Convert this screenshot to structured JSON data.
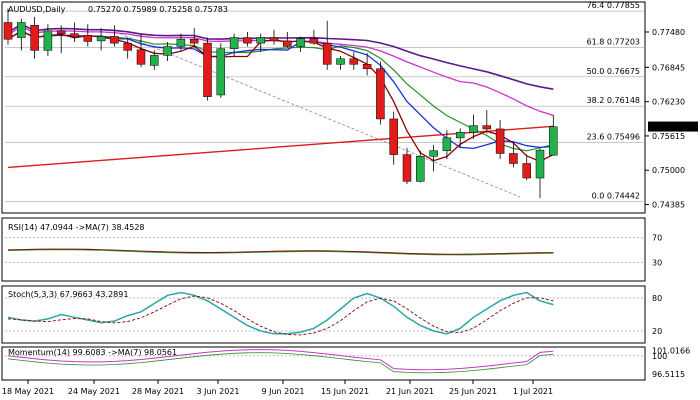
{
  "header": {
    "symbol": "AUDUSD,Daily",
    "ohlc": "0.75270 0.75989 0.75258 0.75783"
  },
  "price_axis": {
    "ticks": [
      "0.77480",
      "0.76845",
      "0.76230",
      "0.75615",
      "0.75000",
      "0.74385"
    ],
    "current_price": "0.75783"
  },
  "fibonacci": [
    {
      "label": "76.4 0.77855"
    },
    {
      "label": "61.8 0.77203"
    },
    {
      "label": "50.0 0.76675"
    },
    {
      "label": "38.2 0.76148"
    },
    {
      "label": "23.6 0.75496"
    },
    {
      "label": "0.0 0.74442"
    }
  ],
  "rsi": {
    "label": "RSI(14) 47.0944 ->MA(7) 38.4528",
    "ticks": [
      "70",
      "30"
    ]
  },
  "stoch": {
    "label": "Stoch(5,3,3) 67.9663 43.2891",
    "ticks": [
      "80",
      "20"
    ]
  },
  "momentum": {
    "label": "Momentum(14) 99.6083 ->MA(7) 98.0561",
    "ticks": [
      "101.0166",
      "100",
      "96.5115"
    ]
  },
  "dates": [
    "18 May 2021",
    "24 May 2021",
    "28 May 2021",
    "3 Jun 2021",
    "9 Jun 2021",
    "15 Jun 2021",
    "21 Jun 2021",
    "25 Jun 2021",
    "1 Jul 2021"
  ],
  "colors": {
    "bull": "#22b14c",
    "bear": "#e01b1b",
    "ma_red": "#8b0000",
    "ma_blue": "#1b2fd6",
    "ma_green": "#2a8f2a",
    "ma_magenta": "#cc33cc",
    "ma_purple": "#5a1a8a",
    "ma_long": "#e01b1b",
    "osc_teal": "#2aa6a6"
  },
  "chart_data": {
    "type": "candlestick",
    "title": "AUDUSD,Daily",
    "candles": [
      {
        "o": 0.7765,
        "h": 0.779,
        "l": 0.7725,
        "c": 0.7735
      },
      {
        "o": 0.7738,
        "h": 0.7772,
        "l": 0.7715,
        "c": 0.7765
      },
      {
        "o": 0.776,
        "h": 0.7775,
        "l": 0.77,
        "c": 0.7715
      },
      {
        "o": 0.7715,
        "h": 0.7762,
        "l": 0.7705,
        "c": 0.775
      },
      {
        "o": 0.775,
        "h": 0.776,
        "l": 0.771,
        "c": 0.7745
      },
      {
        "o": 0.7745,
        "h": 0.7765,
        "l": 0.773,
        "c": 0.774
      },
      {
        "o": 0.7742,
        "h": 0.7762,
        "l": 0.7722,
        "c": 0.7731
      },
      {
        "o": 0.7732,
        "h": 0.7755,
        "l": 0.7715,
        "c": 0.774
      },
      {
        "o": 0.774,
        "h": 0.776,
        "l": 0.7722,
        "c": 0.7728
      },
      {
        "o": 0.7728,
        "h": 0.7738,
        "l": 0.77,
        "c": 0.7715
      },
      {
        "o": 0.7716,
        "h": 0.7745,
        "l": 0.7685,
        "c": 0.769
      },
      {
        "o": 0.7688,
        "h": 0.7715,
        "l": 0.768,
        "c": 0.7706
      },
      {
        "o": 0.7706,
        "h": 0.773,
        "l": 0.7696,
        "c": 0.7722
      },
      {
        "o": 0.7722,
        "h": 0.7745,
        "l": 0.7715,
        "c": 0.7735
      },
      {
        "o": 0.7735,
        "h": 0.7755,
        "l": 0.772,
        "c": 0.7728
      },
      {
        "o": 0.7728,
        "h": 0.7738,
        "l": 0.7625,
        "c": 0.7632
      },
      {
        "o": 0.7635,
        "h": 0.7728,
        "l": 0.763,
        "c": 0.7718
      },
      {
        "o": 0.7718,
        "h": 0.7745,
        "l": 0.7705,
        "c": 0.7738
      },
      {
        "o": 0.7738,
        "h": 0.7748,
        "l": 0.7722,
        "c": 0.7728
      },
      {
        "o": 0.7728,
        "h": 0.7745,
        "l": 0.7712,
        "c": 0.7738
      },
      {
        "o": 0.7738,
        "h": 0.7752,
        "l": 0.7725,
        "c": 0.7732
      },
      {
        "o": 0.7732,
        "h": 0.7748,
        "l": 0.772,
        "c": 0.7722
      },
      {
        "o": 0.7722,
        "h": 0.774,
        "l": 0.7712,
        "c": 0.7736
      },
      {
        "o": 0.7736,
        "h": 0.7752,
        "l": 0.7725,
        "c": 0.7728
      },
      {
        "o": 0.7728,
        "h": 0.7768,
        "l": 0.768,
        "c": 0.769
      },
      {
        "o": 0.769,
        "h": 0.7705,
        "l": 0.768,
        "c": 0.77
      },
      {
        "o": 0.77,
        "h": 0.7712,
        "l": 0.768,
        "c": 0.769
      },
      {
        "o": 0.769,
        "h": 0.771,
        "l": 0.767,
        "c": 0.7682
      },
      {
        "o": 0.7682,
        "h": 0.7695,
        "l": 0.7582,
        "c": 0.7592
      },
      {
        "o": 0.7592,
        "h": 0.7605,
        "l": 0.751,
        "c": 0.7528
      },
      {
        "o": 0.7528,
        "h": 0.754,
        "l": 0.7475,
        "c": 0.748
      },
      {
        "o": 0.748,
        "h": 0.7535,
        "l": 0.7478,
        "c": 0.7525
      },
      {
        "o": 0.7525,
        "h": 0.7545,
        "l": 0.7498,
        "c": 0.7535
      },
      {
        "o": 0.7535,
        "h": 0.7572,
        "l": 0.752,
        "c": 0.7558
      },
      {
        "o": 0.7558,
        "h": 0.7575,
        "l": 0.754,
        "c": 0.7568
      },
      {
        "o": 0.7568,
        "h": 0.76,
        "l": 0.7556,
        "c": 0.758
      },
      {
        "o": 0.758,
        "h": 0.7608,
        "l": 0.7566,
        "c": 0.7574
      },
      {
        "o": 0.7574,
        "h": 0.759,
        "l": 0.752,
        "c": 0.753
      },
      {
        "o": 0.753,
        "h": 0.7548,
        "l": 0.7505,
        "c": 0.7512
      },
      {
        "o": 0.7512,
        "h": 0.7528,
        "l": 0.7482,
        "c": 0.7486
      },
      {
        "o": 0.7486,
        "h": 0.754,
        "l": 0.745,
        "c": 0.7536
      },
      {
        "o": 0.7527,
        "h": 0.7599,
        "l": 0.7526,
        "c": 0.7578
      }
    ],
    "ylim": [
      0.7425,
      0.78
    ]
  }
}
